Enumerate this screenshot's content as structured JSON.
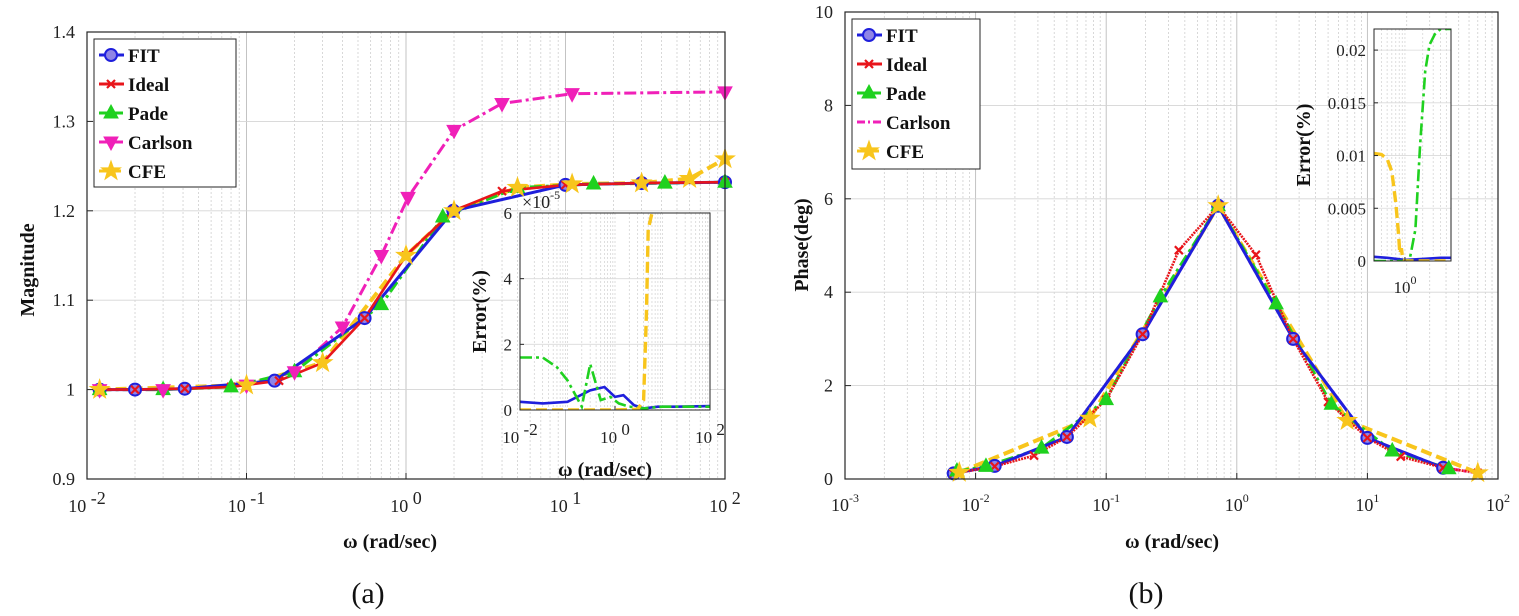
{
  "colors": {
    "fit": "#1f1fdc",
    "ideal": "#e8151b",
    "pade": "#1fd11f",
    "carlson": "#f020b8",
    "cfe": "#f8c51c",
    "grid": "#cfcfcf",
    "axis": "#262626"
  },
  "chart_data": [
    {
      "id": "a",
      "type": "line",
      "panel_label": "(a)",
      "title": "",
      "xlabel": "ω (rad/sec)",
      "ylabel": "Magnitude",
      "xscale": "log",
      "xlim": [
        0.01,
        100
      ],
      "ylim": [
        0.9,
        1.4
      ],
      "x_ticks": [
        {
          "base": "10",
          "exp": "-2",
          "value": 0.01
        },
        {
          "base": "10",
          "exp": "-1",
          "value": 0.1
        },
        {
          "base": "10",
          "exp": "0",
          "value": 1
        },
        {
          "base": "10",
          "exp": "1",
          "value": 10
        },
        {
          "base": "10",
          "exp": "2",
          "value": 100
        }
      ],
      "y_ticks": [
        "0.9",
        "1",
        "1.1",
        "1.2",
        "1.3",
        "1.4"
      ],
      "y_tick_values": [
        0.9,
        1.0,
        1.1,
        1.2,
        1.3,
        1.4
      ],
      "grid": true,
      "legend_position": "top-left",
      "legend": [
        "FIT",
        "Ideal",
        "Pade",
        "Carlson",
        "CFE"
      ],
      "series": [
        {
          "name": "FIT",
          "key": "fit",
          "marker": "circle",
          "dash": "solid",
          "x": [
            0.012,
            0.02,
            0.041,
            0.15,
            0.55,
            1.98,
            10,
            30,
            100
          ],
          "y": [
            1.0,
            1.0,
            1.001,
            1.01,
            1.08,
            1.2,
            1.229,
            1.231,
            1.232
          ]
        },
        {
          "name": "Ideal",
          "key": "ideal",
          "marker": "x",
          "dash": "solid",
          "x": [
            0.012,
            0.02,
            0.041,
            0.08,
            0.16,
            0.3,
            0.55,
            1,
            1.98,
            4,
            10,
            30,
            100
          ],
          "y": [
            1.0,
            1.0,
            1.001,
            1.003,
            1.01,
            1.03,
            1.08,
            1.15,
            1.2,
            1.222,
            1.229,
            1.231,
            1.232
          ]
        },
        {
          "name": "Pade",
          "key": "pade",
          "marker": "triangle-up",
          "dash": "dashdot",
          "x": [
            0.012,
            0.03,
            0.08,
            0.2,
            0.7,
            1.7,
            5,
            15,
            42,
            100
          ],
          "y": [
            1.0,
            1.0,
            1.003,
            1.02,
            1.095,
            1.193,
            1.226,
            1.23,
            1.231,
            1.232
          ]
        },
        {
          "name": "Carlson",
          "key": "carlson",
          "marker": "triangle-down",
          "dash": "dashdot",
          "x": [
            0.012,
            0.03,
            0.1,
            0.2,
            0.4,
            0.7,
            1.03,
            2,
            4,
            11,
            100
          ],
          "y": [
            1.0,
            1.0,
            1.005,
            1.02,
            1.07,
            1.15,
            1.215,
            1.29,
            1.32,
            1.331,
            1.333
          ]
        },
        {
          "name": "CFE",
          "key": "cfe",
          "marker": "star",
          "dash": "dashed",
          "x": [
            0.012,
            0.1,
            0.3,
            1,
            2,
            5,
            11,
            30,
            60,
            100
          ],
          "y": [
            1.0,
            1.005,
            1.03,
            1.15,
            1.2,
            1.226,
            1.23,
            1.231,
            1.236,
            1.258
          ]
        }
      ],
      "inset": {
        "xlabel": "ω (rad/sec)",
        "ylabel": "Error(%)",
        "xscale": "log",
        "xlim": [
          0.01,
          100
        ],
        "ylim": [
          0,
          6
        ],
        "y_ticks": [
          "0",
          "2",
          "4",
          "6"
        ],
        "y_tick_values": [
          0,
          2,
          4,
          6
        ],
        "x_ticks": [
          {
            "base": "10",
            "exp": "-2",
            "value": 0.01
          },
          {
            "base": "10",
            "exp": "0",
            "value": 1
          },
          {
            "base": "10",
            "exp": "2",
            "value": 100
          }
        ],
        "y_exponent": {
          "base": "×10",
          "exp": "-5"
        },
        "series": [
          {
            "name": "FIT",
            "key": "fit",
            "dash": "solid",
            "x": [
              0.01,
              0.03,
              0.1,
              0.3,
              0.6,
              1,
              1.5,
              2.5,
              4,
              8,
              20,
              100
            ],
            "y": [
              0.25,
              0.2,
              0.25,
              0.6,
              0.7,
              0.4,
              0.45,
              0.15,
              0.05,
              0.1,
              0.1,
              0.12
            ]
          },
          {
            "name": "Pade",
            "key": "pade",
            "dash": "dashdot",
            "x": [
              0.01,
              0.03,
              0.06,
              0.1,
              0.2,
              0.3,
              0.5,
              0.8,
              1.2,
              2,
              4,
              10,
              100
            ],
            "y": [
              1.6,
              1.6,
              1.3,
              0.9,
              0.1,
              1.4,
              0.3,
              0.4,
              0.2,
              0.1,
              0.05,
              0.1,
              0.1
            ]
          },
          {
            "name": "CFE",
            "key": "cfe",
            "dash": "dashed",
            "x": [
              0.01,
              1,
              3,
              4,
              4.6,
              5,
              6
            ],
            "y": [
              0,
              0,
              0.02,
              0.3,
              3,
              5.5,
              6
            ]
          }
        ]
      }
    },
    {
      "id": "b",
      "type": "line",
      "panel_label": "(b)",
      "title": "",
      "xlabel": "ω (rad/sec)",
      "ylabel": "Phase(deg)",
      "xscale": "log",
      "xlim": [
        0.001,
        100
      ],
      "ylim": [
        0,
        10
      ],
      "x_ticks": [
        {
          "base": "10",
          "exp": "-3",
          "value": 0.001
        },
        {
          "base": "10",
          "exp": "-2",
          "value": 0.01
        },
        {
          "base": "10",
          "exp": "-1",
          "value": 0.1
        },
        {
          "base": "10",
          "exp": "0",
          "value": 1
        },
        {
          "base": "10",
          "exp": "1",
          "value": 10
        },
        {
          "base": "10",
          "exp": "2",
          "value": 100
        }
      ],
      "y_ticks": [
        "0",
        "2",
        "4",
        "6",
        "8",
        "10"
      ],
      "y_tick_values": [
        0,
        2,
        4,
        6,
        8,
        10
      ],
      "grid": true,
      "legend_position": "top-left",
      "legend": [
        "FIT",
        "Ideal",
        "Pade",
        "Carlson",
        "CFE"
      ],
      "series": [
        {
          "name": "FIT",
          "key": "fit",
          "marker": "circle",
          "dash": "solid",
          "x": [
            0.0068,
            0.014,
            0.05,
            0.19,
            0.72,
            2.7,
            10,
            38
          ],
          "y": [
            0.12,
            0.28,
            0.9,
            3.1,
            5.85,
            3.0,
            0.88,
            0.24
          ]
        },
        {
          "name": "Ideal",
          "key": "ideal",
          "marker": "x",
          "dash": "solid",
          "x": [
            0.0068,
            0.014,
            0.028,
            0.05,
            0.1,
            0.19,
            0.36,
            0.72,
            1.4,
            2.7,
            5,
            10,
            18,
            38,
            70
          ],
          "y": [
            0.12,
            0.27,
            0.5,
            0.9,
            1.7,
            3.1,
            4.9,
            5.85,
            4.8,
            3.0,
            1.65,
            0.88,
            0.48,
            0.24,
            0.13
          ]
        },
        {
          "name": "Pade",
          "key": "pade",
          "marker": "triangle-up",
          "dash": "dashdot",
          "x": [
            0.0072,
            0.012,
            0.032,
            0.1,
            0.26,
            0.72,
            2,
            5.3,
            15.5,
            42
          ],
          "y": [
            0.17,
            0.27,
            0.66,
            1.7,
            3.9,
            5.85,
            3.75,
            1.6,
            0.6,
            0.22
          ]
        },
        {
          "name": "Carlson",
          "key": "carlson",
          "marker": "none",
          "dash": "dashdot",
          "x": [
            0.0068,
            0.014,
            0.05,
            0.19,
            0.72,
            2.7,
            10,
            38,
            70
          ],
          "y": [
            0.12,
            0.27,
            0.9,
            3.1,
            5.85,
            3.0,
            0.88,
            0.24,
            0.13
          ]
        },
        {
          "name": "CFE",
          "key": "cfe",
          "marker": "star",
          "dash": "dashed",
          "x": [
            0.0075,
            0.075,
            0.72,
            7,
            70
          ],
          "y": [
            0.14,
            1.3,
            5.85,
            1.25,
            0.13
          ]
        }
      ],
      "inset": {
        "ylabel": "Error(%)",
        "xlabel": "",
        "xscale": "log",
        "xlim": [
          0.3,
          6
        ],
        "ylim": [
          0,
          0.022
        ],
        "y_ticks": [
          "0",
          "0.005",
          "0.01",
          "0.015",
          "0.02"
        ],
        "y_tick_values": [
          0,
          0.005,
          0.01,
          0.015,
          0.02
        ],
        "x_ticks": [
          {
            "base": "10",
            "exp": "0",
            "value": 1
          }
        ],
        "series": [
          {
            "name": "FIT",
            "key": "fit",
            "dash": "solid",
            "x": [
              0.3,
              0.5,
              1,
              2,
              4,
              6
            ],
            "y": [
              0.0004,
              0.0003,
              0.0001,
              0.0002,
              0.0003,
              0.0003
            ]
          },
          {
            "name": "Pade",
            "key": "pade",
            "dash": "dashdot",
            "x": [
              0.3,
              1.0,
              1.2,
              1.5,
              1.8,
              2.2,
              2.6,
              3.2,
              4,
              6
            ],
            "y": [
              0,
              0,
              0.0001,
              0.003,
              0.011,
              0.018,
              0.0205,
              0.0215,
              0.022,
              0.022
            ]
          },
          {
            "name": "CFE",
            "key": "cfe",
            "dash": "dashed",
            "x": [
              0.3,
              0.4,
              0.5,
              0.6,
              0.7,
              0.78,
              0.82,
              0.87,
              0.92,
              1.0,
              1.5,
              6
            ],
            "y": [
              0.0102,
              0.0101,
              0.0097,
              0.0085,
              0.0055,
              0.0025,
              0.0007,
              0.0012,
              0.0001,
              0.0,
              0.0,
              0.0
            ]
          }
        ]
      }
    }
  ]
}
